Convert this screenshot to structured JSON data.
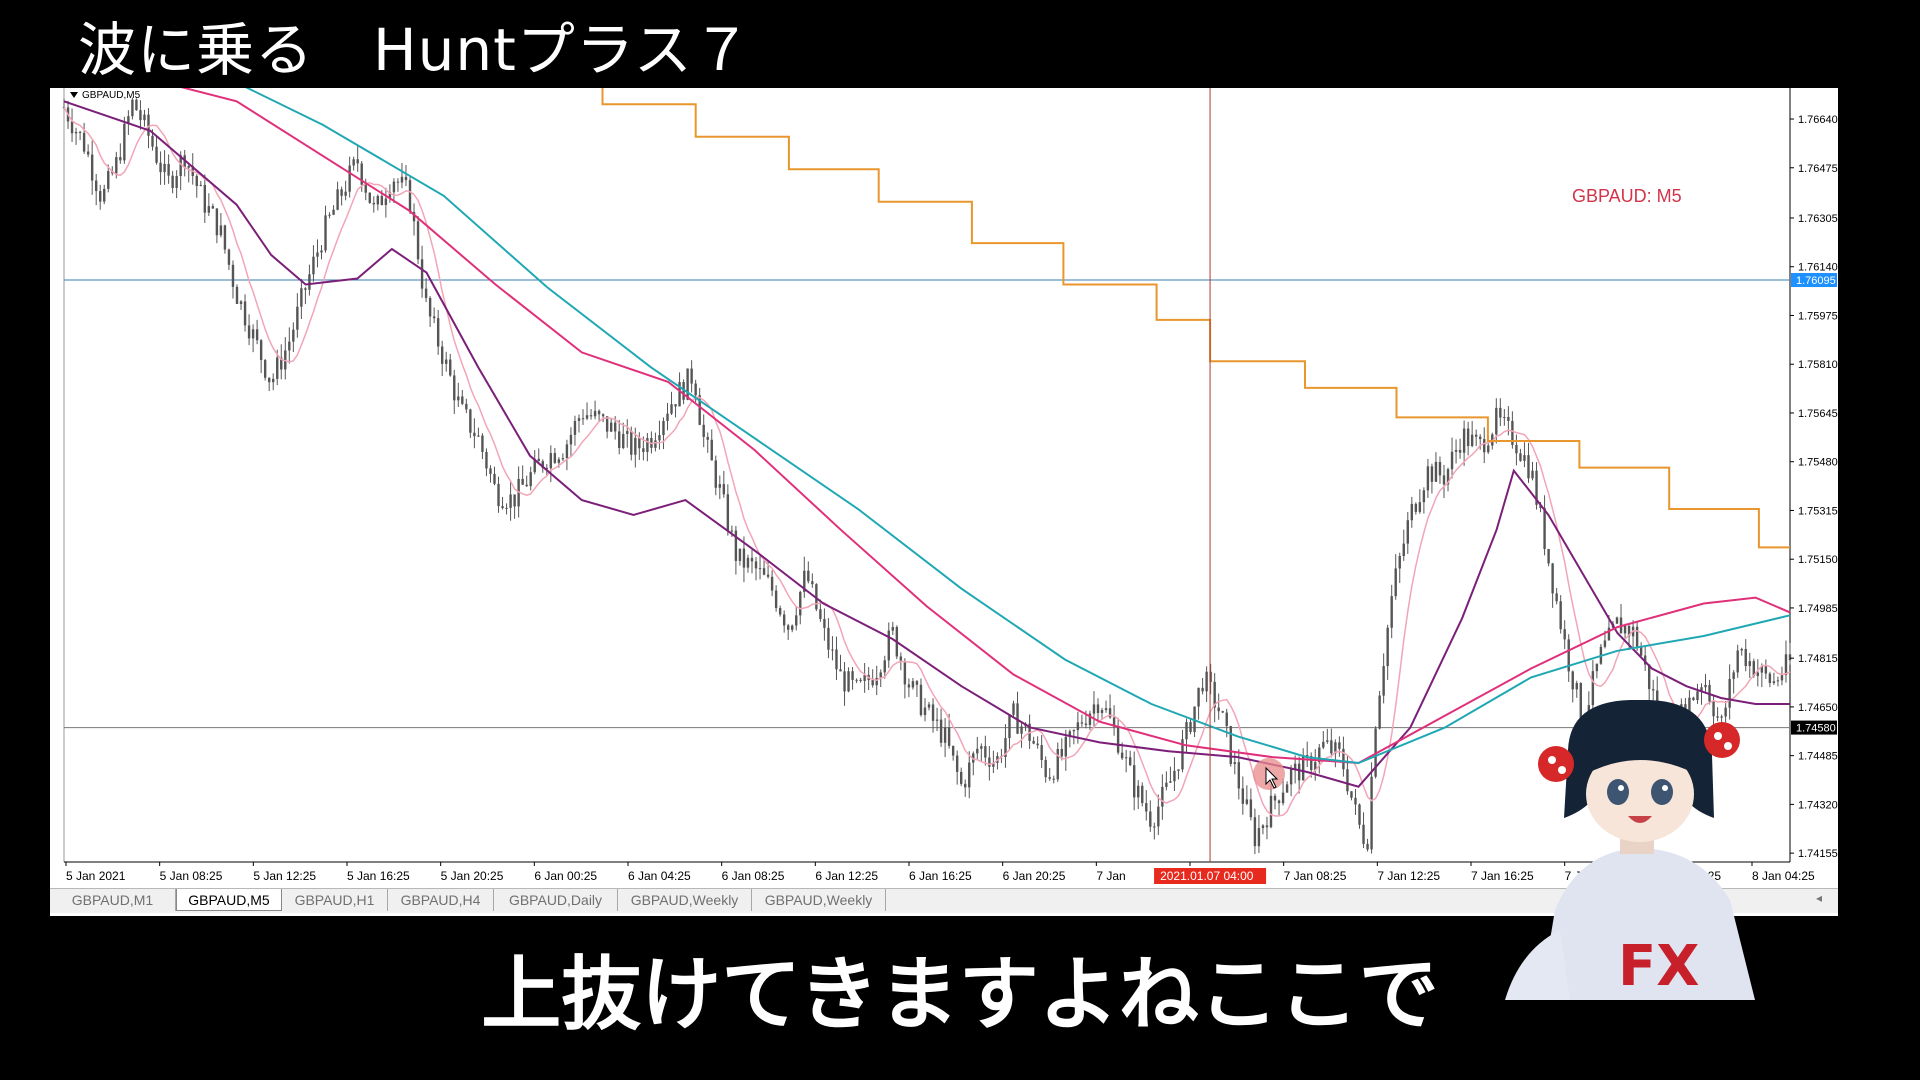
{
  "video_title": "波に乗る　Huntプラス７",
  "subtitle": "上抜けてきますよねここで",
  "chart": {
    "header_label": "GBPAUD,M5",
    "symbol_overlay": "GBPAUD: M5",
    "crosshair_time_label": "2021.01.07 04:00",
    "colors": {
      "candles": "#555555",
      "ma_fast": "#f2a5b7",
      "ma_purple": "#7b1f79",
      "ma_magenta": "#e0307a",
      "ma_teal": "#1fa8b4",
      "step_line": "#e8962d",
      "crosshair": "#b03a2e",
      "overlay_text": "#d2344a",
      "price_highlight_bg": "#1e90ff",
      "time_highlight_bg": "#e82a1e"
    }
  },
  "chart_data": {
    "type": "candlestick",
    "symbol": "GBPAUD",
    "timeframe": "M5",
    "price_ticks": [
      "1.76640",
      "1.76475",
      "1.76305",
      "1.76140",
      "1.75975",
      "1.75810",
      "1.75645",
      "1.75480",
      "1.75315",
      "1.75150",
      "1.74985",
      "1.74815",
      "1.74650",
      "1.74485",
      "1.74320",
      "1.74155"
    ],
    "price_tick_values": [
      1.7664,
      1.76475,
      1.76305,
      1.7614,
      1.75975,
      1.7581,
      1.75645,
      1.7548,
      1.75315,
      1.7515,
      1.74985,
      1.74815,
      1.7465,
      1.74485,
      1.7432,
      1.74155
    ],
    "time_ticks": [
      "5 Jan 2021",
      "5 Jan 08:25",
      "5 Jan 12:25",
      "5 Jan 16:25",
      "5 Jan 20:25",
      "6 Jan 00:25",
      "6 Jan 04:25",
      "6 Jan 08:25",
      "6 Jan 12:25",
      "6 Jan 16:25",
      "6 Jan 20:25",
      "7 Jan",
      "",
      "7 Jan 08:25",
      "7 Jan 12:25",
      "7 Jan 16:25",
      "7 Jan 20:25",
      "8 Jan 00:25",
      "8 Jan 04:25"
    ],
    "price_labels": [
      {
        "text": "1.76095",
        "value": 1.76095,
        "style": "highlight"
      },
      {
        "text": "1.74580",
        "value": 1.7458,
        "style": "dark"
      }
    ],
    "horizontal_lines": [
      {
        "value": 1.76095,
        "color": "#3a7fb0"
      },
      {
        "value": 1.7458,
        "color": "#777777"
      }
    ],
    "close_path": [
      [
        0,
        1.7668
      ],
      [
        0.012,
        1.7655
      ],
      [
        0.022,
        1.7637
      ],
      [
        0.03,
        1.7648
      ],
      [
        0.04,
        1.767
      ],
      [
        0.05,
        1.7657
      ],
      [
        0.06,
        1.7642
      ],
      [
        0.07,
        1.7652
      ],
      [
        0.08,
        1.7637
      ],
      [
        0.09,
        1.7627
      ],
      [
        0.1,
        1.7605
      ],
      [
        0.11,
        1.759
      ],
      [
        0.12,
        1.7575
      ],
      [
        0.13,
        1.7588
      ],
      [
        0.14,
        1.7607
      ],
      [
        0.15,
        1.7625
      ],
      [
        0.16,
        1.7638
      ],
      [
        0.17,
        1.765
      ],
      [
        0.18,
        1.7632
      ],
      [
        0.19,
        1.7645
      ],
      [
        0.2,
        1.7638
      ],
      [
        0.21,
        1.76
      ],
      [
        0.22,
        1.7583
      ],
      [
        0.23,
        1.7565
      ],
      [
        0.24,
        1.7556
      ],
      [
        0.25,
        1.7538
      ],
      [
        0.26,
        1.7535
      ],
      [
        0.27,
        1.7543
      ],
      [
        0.28,
        1.755
      ],
      [
        0.29,
        1.7553
      ],
      [
        0.3,
        1.7565
      ],
      [
        0.31,
        1.7562
      ],
      [
        0.32,
        1.7558
      ],
      [
        0.33,
        1.7552
      ],
      [
        0.34,
        1.7556
      ],
      [
        0.35,
        1.7567
      ],
      [
        0.36,
        1.7574
      ],
      [
        0.365,
        1.7578
      ],
      [
        0.37,
        1.7557
      ],
      [
        0.38,
        1.7538
      ],
      [
        0.39,
        1.7515
      ],
      [
        0.4,
        1.7512
      ],
      [
        0.41,
        1.7505
      ],
      [
        0.42,
        1.7492
      ],
      [
        0.43,
        1.751
      ],
      [
        0.44,
        1.749
      ],
      [
        0.45,
        1.7475
      ],
      [
        0.46,
        1.747
      ],
      [
        0.47,
        1.7477
      ],
      [
        0.48,
        1.749
      ],
      [
        0.49,
        1.7472
      ],
      [
        0.5,
        1.7463
      ],
      [
        0.51,
        1.7455
      ],
      [
        0.52,
        1.7438
      ],
      [
        0.53,
        1.7452
      ],
      [
        0.54,
        1.7446
      ],
      [
        0.55,
        1.7462
      ],
      [
        0.56,
        1.7455
      ],
      [
        0.57,
        1.7442
      ],
      [
        0.58,
        1.745
      ],
      [
        0.59,
        1.7461
      ],
      [
        0.6,
        1.7468
      ],
      [
        0.61,
        1.7455
      ],
      [
        0.62,
        1.7438
      ],
      [
        0.63,
        1.7427
      ],
      [
        0.64,
        1.7438
      ],
      [
        0.65,
        1.7455
      ],
      [
        0.66,
        1.7475
      ],
      [
        0.67,
        1.7463
      ],
      [
        0.68,
        1.744
      ],
      [
        0.69,
        1.7421
      ],
      [
        0.7,
        1.7432
      ],
      [
        0.71,
        1.7442
      ],
      [
        0.72,
        1.7445
      ],
      [
        0.73,
        1.7452
      ],
      [
        0.74,
        1.7448
      ],
      [
        0.75,
        1.7425
      ],
      [
        0.755,
        1.7419
      ],
      [
        0.76,
        1.7462
      ],
      [
        0.77,
        1.7505
      ],
      [
        0.78,
        1.753
      ],
      [
        0.79,
        1.7545
      ],
      [
        0.8,
        1.7543
      ],
      [
        0.81,
        1.7557
      ],
      [
        0.82,
        1.7553
      ],
      [
        0.83,
        1.7562
      ],
      [
        0.84,
        1.7556
      ],
      [
        0.85,
        1.7545
      ],
      [
        0.86,
        1.7515
      ],
      [
        0.87,
        1.7485
      ],
      [
        0.88,
        1.746
      ],
      [
        0.89,
        1.7482
      ],
      [
        0.9,
        1.7493
      ],
      [
        0.91,
        1.749
      ],
      [
        0.92,
        1.747
      ],
      [
        0.93,
        1.7455
      ],
      [
        0.94,
        1.7465
      ],
      [
        0.95,
        1.7475
      ],
      [
        0.96,
        1.7458
      ],
      [
        0.97,
        1.7485
      ],
      [
        0.98,
        1.7478
      ],
      [
        0.99,
        1.7473
      ],
      [
        1,
        1.748
      ]
    ],
    "moving_averages": [
      {
        "name": "",
        "color": "#7b1f79",
        "points": [
          [
            0,
            1.767
          ],
          [
            0.05,
            1.766
          ],
          [
            0.1,
            1.7635
          ],
          [
            0.12,
            1.7618
          ],
          [
            0.14,
            1.7608
          ],
          [
            0.17,
            1.761
          ],
          [
            0.19,
            1.762
          ],
          [
            0.21,
            1.7612
          ],
          [
            0.24,
            1.758
          ],
          [
            0.27,
            1.755
          ],
          [
            0.3,
            1.7535
          ],
          [
            0.33,
            1.753
          ],
          [
            0.36,
            1.7535
          ],
          [
            0.4,
            1.7518
          ],
          [
            0.44,
            1.75
          ],
          [
            0.48,
            1.7488
          ],
          [
            0.52,
            1.7472
          ],
          [
            0.56,
            1.7458
          ],
          [
            0.6,
            1.7453
          ],
          [
            0.64,
            1.745
          ],
          [
            0.68,
            1.7448
          ],
          [
            0.72,
            1.7443
          ],
          [
            0.75,
            1.7438
          ],
          [
            0.78,
            1.7458
          ],
          [
            0.81,
            1.7495
          ],
          [
            0.83,
            1.7525
          ],
          [
            0.84,
            1.7545
          ],
          [
            0.86,
            1.753
          ],
          [
            0.88,
            1.751
          ],
          [
            0.9,
            1.749
          ],
          [
            0.92,
            1.7478
          ],
          [
            0.94,
            1.7472
          ],
          [
            0.96,
            1.7468
          ],
          [
            0.98,
            1.7466
          ],
          [
            1,
            1.7466
          ]
        ]
      },
      {
        "name": "",
        "color": "#e0307a",
        "points": [
          [
            0,
            1.7685
          ],
          [
            0.1,
            1.767
          ],
          [
            0.2,
            1.7633
          ],
          [
            0.25,
            1.7608
          ],
          [
            0.3,
            1.7585
          ],
          [
            0.35,
            1.7575
          ],
          [
            0.4,
            1.7552
          ],
          [
            0.45,
            1.7525
          ],
          [
            0.5,
            1.7499
          ],
          [
            0.55,
            1.7476
          ],
          [
            0.6,
            1.746
          ],
          [
            0.65,
            1.7452
          ],
          [
            0.7,
            1.7448
          ],
          [
            0.75,
            1.7446
          ],
          [
            0.8,
            1.7462
          ],
          [
            0.85,
            1.7478
          ],
          [
            0.9,
            1.7492
          ],
          [
            0.95,
            1.75
          ],
          [
            0.98,
            1.7502
          ],
          [
            1,
            1.7497
          ]
        ]
      },
      {
        "name": "",
        "color": "#1fa8b4",
        "points": [
          [
            0,
            1.769
          ],
          [
            0.08,
            1.7682
          ],
          [
            0.15,
            1.7662
          ],
          [
            0.22,
            1.7638
          ],
          [
            0.28,
            1.7607
          ],
          [
            0.34,
            1.758
          ],
          [
            0.4,
            1.7556
          ],
          [
            0.46,
            1.7532
          ],
          [
            0.52,
            1.7505
          ],
          [
            0.58,
            1.7481
          ],
          [
            0.63,
            1.7466
          ],
          [
            0.68,
            1.7455
          ],
          [
            0.72,
            1.7448
          ],
          [
            0.75,
            1.7446
          ],
          [
            0.8,
            1.7458
          ],
          [
            0.85,
            1.7475
          ],
          [
            0.9,
            1.7484
          ],
          [
            0.95,
            1.7489
          ],
          [
            1,
            1.7496
          ]
        ]
      }
    ],
    "step_line": [
      [
        0.26,
        1.768
      ],
      [
        0.312,
        1.768
      ],
      [
        0.312,
        1.7669
      ],
      [
        0.366,
        1.7669
      ],
      [
        0.366,
        1.7658
      ],
      [
        0.42,
        1.7658
      ],
      [
        0.42,
        1.7647
      ],
      [
        0.472,
        1.7647
      ],
      [
        0.472,
        1.7636
      ],
      [
        0.526,
        1.7636
      ],
      [
        0.526,
        1.7622
      ],
      [
        0.579,
        1.7622
      ],
      [
        0.579,
        1.7608
      ],
      [
        0.633,
        1.7608
      ],
      [
        0.633,
        1.7596
      ],
      [
        0.664,
        1.7596
      ],
      [
        0.664,
        1.7582
      ],
      [
        0.719,
        1.7582
      ],
      [
        0.719,
        1.7573
      ],
      [
        0.772,
        1.7573
      ],
      [
        0.772,
        1.7563
      ],
      [
        0.825,
        1.7563
      ],
      [
        0.825,
        1.7555
      ],
      [
        0.878,
        1.7555
      ],
      [
        0.878,
        1.7546
      ],
      [
        0.93,
        1.7546
      ],
      [
        0.93,
        1.7532
      ],
      [
        0.982,
        1.7532
      ],
      [
        0.982,
        1.7519
      ],
      [
        1,
        1.7519
      ]
    ],
    "crosshair": {
      "x_fraction": 0.664,
      "y_value": 1.76095
    },
    "xlim": [
      0,
      1
    ],
    "ylim": [
      1.74125,
      1.76745
    ]
  },
  "tabs": [
    {
      "label": "GBPAUD,M1",
      "active": false
    },
    {
      "label": "GBPAUD,M5",
      "active": true
    },
    {
      "label": "GBPAUD,H1",
      "active": false
    },
    {
      "label": "GBPAUD,H4",
      "active": false
    },
    {
      "label": "GBPAUD,Daily",
      "active": false
    },
    {
      "label": "GBPAUD,Weekly",
      "active": false
    },
    {
      "label": "GBPAUD,Weekly",
      "active": false
    }
  ],
  "avatar": {
    "shirt_text": "FX"
  }
}
